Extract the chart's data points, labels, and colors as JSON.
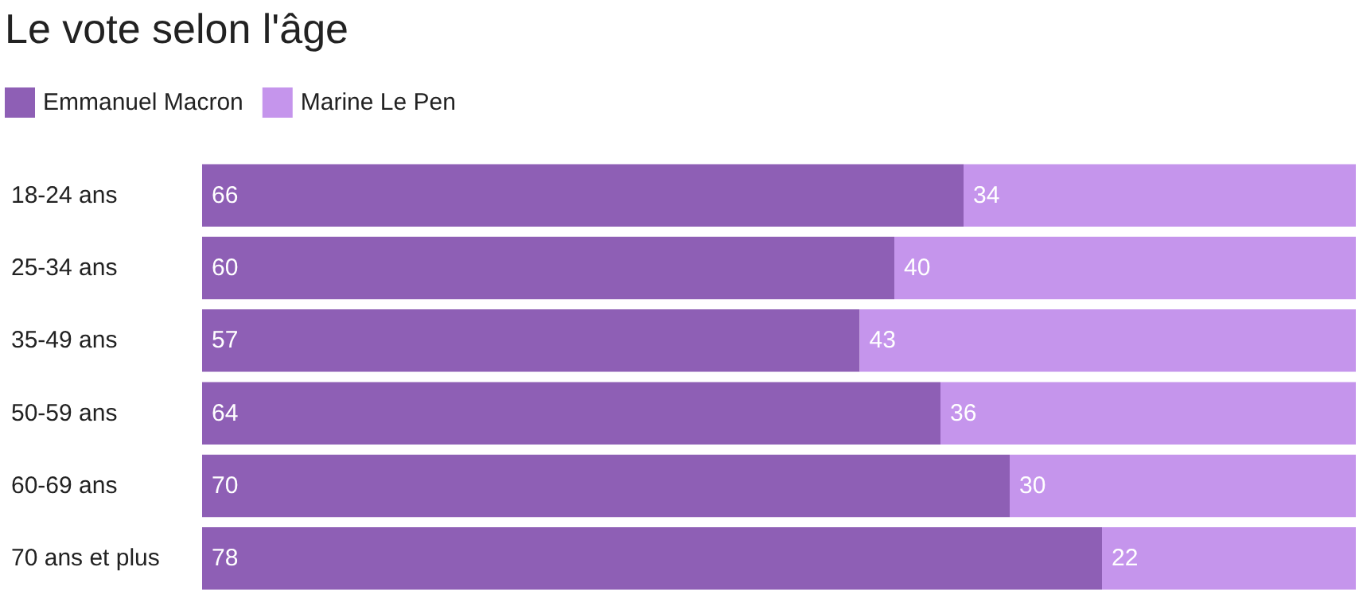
{
  "chart_data": {
    "type": "bar",
    "title": "Le vote selon l'âge",
    "orientation": "horizontal",
    "stacked": true,
    "data_labels": true,
    "legend": "top left",
    "categories": [
      "18-24 ans",
      "25-34 ans",
      "35-49 ans",
      "50-59 ans",
      "60-69 ans",
      "70 ans et plus"
    ],
    "series": [
      {
        "name": "Emmanuel Macron",
        "color": "#8e5fb5",
        "values": [
          66,
          60,
          57,
          64,
          70,
          78
        ]
      },
      {
        "name": "Marine Le Pen",
        "color": "#c595ec",
        "values": [
          34,
          40,
          43,
          36,
          30,
          22
        ]
      }
    ]
  }
}
